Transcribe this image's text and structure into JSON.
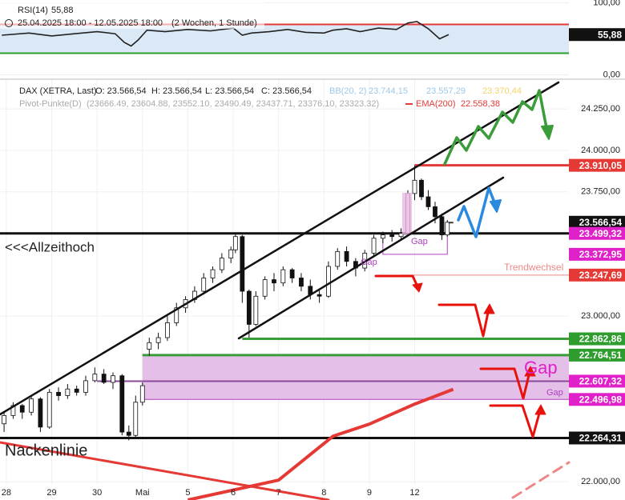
{
  "chart_data": [
    {
      "type": "line",
      "title": "RSI(14)",
      "period": "25.04.2025 18:00 - 12.05.2025 18:00",
      "interval": "(2 Wochen, 1 Stunde)",
      "ylim": [
        -4,
        104
      ],
      "yticks": [
        {
          "value": 100,
          "label": "100,00"
        },
        {
          "value": 0,
          "label": "0,00"
        }
      ],
      "xlim": [
        -0.14,
        12.4
      ],
      "levels": [
        {
          "value": 70,
          "color": "#e53935"
        },
        {
          "value": 30,
          "color": "#2e9d2e"
        }
      ],
      "band_color": "#dbe9f7",
      "series": [
        {
          "name": "RSI(14)",
          "color": "#222",
          "x": [
            -0.1,
            0.5,
            1.0,
            1.5,
            2.0,
            2.4,
            2.6,
            2.75,
            2.9,
            3.1,
            3.5,
            4.0,
            4.5,
            5.0,
            5.2,
            5.4,
            5.8,
            6.2,
            6.6,
            7.0,
            7.2,
            7.5,
            7.8,
            8.2,
            8.6,
            8.85,
            9.05,
            9.3,
            9.55,
            9.75
          ],
          "values": [
            55,
            58,
            54,
            57,
            60,
            57,
            45,
            40,
            48,
            62,
            60,
            63,
            61,
            65,
            55,
            58,
            60,
            63,
            59,
            58,
            62,
            64,
            60,
            65,
            63,
            72,
            74,
            64,
            50,
            55.88
          ],
          "value_labels": [
            null,
            null,
            null,
            null,
            null,
            null,
            null,
            null,
            null,
            null,
            null,
            null,
            null,
            null,
            null,
            null,
            null,
            null,
            null,
            null,
            null,
            null,
            null,
            null,
            null,
            null,
            null,
            null,
            null,
            "55,88"
          ]
        }
      ]
    },
    {
      "type": "candlestick",
      "ylim": [
        21890,
        24425
      ],
      "xlim": [
        -0.14,
        12.4
      ],
      "grid": true,
      "yticks": [
        {
          "value": 24250,
          "label": "24.250,00"
        },
        {
          "value": 24000,
          "label": "24.000,00"
        },
        {
          "value": 23750,
          "label": "23.750,00"
        },
        {
          "value": 23000,
          "label": "23.000,00"
        },
        {
          "value": 22000,
          "label": "22.000,00"
        }
      ],
      "xticks": [
        {
          "value": 0,
          "label": "28"
        },
        {
          "value": 1,
          "label": "29"
        },
        {
          "value": 2,
          "label": "30"
        },
        {
          "value": 3,
          "label": "Mai"
        },
        {
          "value": 4,
          "label": "5"
        },
        {
          "value": 5,
          "label": "6"
        },
        {
          "value": 6,
          "label": "7"
        },
        {
          "value": 7,
          "label": "8"
        },
        {
          "value": 8,
          "label": "9"
        },
        {
          "value": 9,
          "label": "12"
        }
      ],
      "legend": {
        "ohlc": [
          "O: 23.566,54",
          "H: 23.566,54",
          "L: 23.566,54",
          "C: 23.566,54"
        ],
        "bb": {
          "name": "BB(20, 2)",
          "labels": [
            "23.744,15",
            "23.557,29",
            "23.370,44"
          ],
          "colors": [
            "#9cc8ea",
            "#9cc8ea",
            "#f3d36b"
          ]
        },
        "pivot": {
          "name": "Pivot-Punkte(D)",
          "label": "(23666.49, 23604.88, 23552.10, 23490.49, 23437.71, 23376.10, 23323.32)",
          "color": "#aaa"
        }
      },
      "series": [
        {
          "name": "DAX (XETRA, Last)",
          "up_color": "#fff",
          "down_color": "#111",
          "x": [
            -0.05,
            0.15,
            0.35,
            0.55,
            0.75,
            0.95,
            1.15,
            1.35,
            1.55,
            1.75,
            1.95,
            2.15,
            2.35,
            2.55,
            2.7,
            2.85,
            3.0,
            3.15,
            3.35,
            3.55,
            3.75,
            3.95,
            4.15,
            4.35,
            4.55,
            4.75,
            4.95,
            5.05,
            5.2,
            5.35,
            5.5,
            5.7,
            5.9,
            6.1,
            6.3,
            6.5,
            6.7,
            6.9,
            7.1,
            7.3,
            7.5,
            7.7,
            7.9,
            8.1,
            8.3,
            8.5,
            8.7,
            8.85,
            9.0,
            9.15,
            9.3,
            9.45,
            9.6,
            9.72,
            9.8
          ],
          "open": [
            22350,
            22400,
            22460,
            22420,
            22500,
            22330,
            22540,
            22520,
            22560,
            22540,
            22610,
            22650,
            22600,
            22640,
            22300,
            22280,
            22480,
            22800,
            22840,
            22870,
            22960,
            23050,
            23100,
            23150,
            23230,
            23280,
            23350,
            23400,
            23480,
            23150,
            22950,
            23120,
            23220,
            23200,
            23280,
            23230,
            23180,
            23130,
            23120,
            23300,
            23390,
            23330,
            23290,
            23380,
            23470,
            23490,
            23480,
            23500,
            23740,
            23820,
            23720,
            23660,
            23600,
            23490,
            23566.54
          ],
          "high": [
            22420,
            22480,
            22470,
            22520,
            22510,
            22560,
            22570,
            22590,
            22580,
            22640,
            22690,
            22680,
            22660,
            22650,
            22340,
            22520,
            22600,
            22870,
            22900,
            23000,
            23080,
            23120,
            23180,
            23260,
            23300,
            23380,
            23420,
            23500,
            23490,
            23160,
            23150,
            23240,
            23260,
            23300,
            23290,
            23260,
            23220,
            23160,
            23330,
            23410,
            23420,
            23350,
            23400,
            23490,
            23510,
            23520,
            23530,
            23760,
            23910,
            23830,
            23760,
            23690,
            23620,
            23580,
            23566.54
          ],
          "low": [
            22300,
            22380,
            22380,
            22400,
            22300,
            22320,
            22490,
            22500,
            22520,
            22520,
            22600,
            22590,
            22560,
            22280,
            22250,
            22270,
            22460,
            22760,
            22800,
            22850,
            22940,
            23020,
            23080,
            23130,
            23200,
            23260,
            23320,
            23380,
            23080,
            22870,
            22940,
            23100,
            23150,
            23180,
            23200,
            23150,
            23100,
            23080,
            23110,
            23280,
            23300,
            23240,
            23270,
            23360,
            23440,
            23450,
            23460,
            23490,
            23700,
            23700,
            23640,
            23560,
            23460,
            23480,
            23566.54
          ],
          "close": [
            22400,
            22460,
            22420,
            22500,
            22330,
            22540,
            22520,
            22560,
            22540,
            22610,
            22650,
            22600,
            22640,
            22300,
            22280,
            22480,
            22580,
            22840,
            22870,
            22960,
            23050,
            23100,
            23150,
            23230,
            23280,
            23350,
            23400,
            23480,
            23150,
            22950,
            23120,
            23220,
            23200,
            23280,
            23230,
            23180,
            23130,
            23120,
            23300,
            23390,
            23330,
            23290,
            23380,
            23470,
            23490,
            23480,
            23500,
            23740,
            23820,
            23720,
            23660,
            23600,
            23490,
            23566.54,
            23566.54
          ]
        },
        {
          "name": "EMA(200)",
          "color": "#e53935",
          "x": [
            4.0,
            6.0,
            7.2,
            8.0,
            9.0,
            9.85
          ],
          "values": [
            21890,
            22010,
            22275,
            22348,
            22469,
            22558.38
          ],
          "value_labels": [
            null,
            null,
            null,
            null,
            null,
            "22.558,38"
          ]
        }
      ],
      "levels": [
        {
          "value": 23910.05,
          "label": "23.910,05",
          "color": "#e53935"
        },
        {
          "value": 23566.54,
          "label": "23.566,54",
          "color": "#111"
        },
        {
          "value": 23499.32,
          "label": "23.499,32",
          "color": "#e020c8"
        },
        {
          "value": 23372.95,
          "label": "23.372,95",
          "color": "#e020c8"
        },
        {
          "value": 23247.69,
          "label": "23.247,69",
          "color": "#e53935"
        },
        {
          "value": 22862.86,
          "label": "22.862,86",
          "color": "#2e9d2e"
        },
        {
          "value": 22764.51,
          "label": "22.764,51",
          "color": "#2e9d2e"
        },
        {
          "value": 22607.32,
          "label": "22.607,32",
          "color": "#e020c8"
        },
        {
          "value": 22496.98,
          "label": "22.496,98",
          "color": "#e020c8"
        },
        {
          "value": 22264.31,
          "label": "22.264,31",
          "color": "#111"
        }
      ],
      "annotations": {
        "ath": "<<<Allzeithoch",
        "neck": "Nackenlinie",
        "gap_big": "Gap",
        "gap_small": "Gap",
        "gap_top": "Gap",
        "gap_mid": "Gap",
        "trend": "Trendwechsel"
      }
    }
  ]
}
